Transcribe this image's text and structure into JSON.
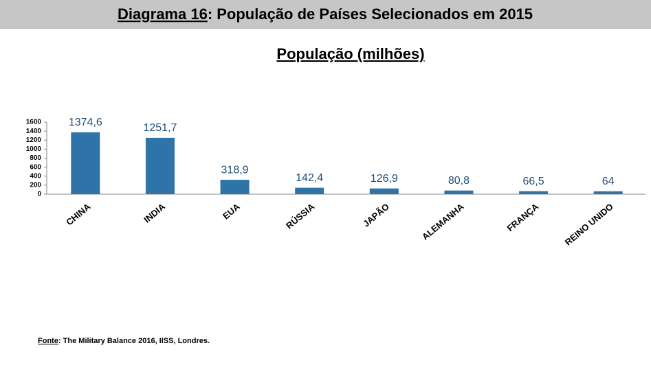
{
  "header": {
    "label": "Diagrama 16",
    "text": ": População de Países Selecionados em 2015"
  },
  "chart_data": {
    "type": "bar",
    "title": "População (milhões)",
    "categories": [
      "CHINA",
      "INDIA",
      "EUA",
      "RÚSSIA",
      "JAPÃO",
      "ALEMANHA",
      "FRANÇA",
      "REINO UNIDO"
    ],
    "values": [
      1374.6,
      1251.7,
      318.9,
      142.4,
      126.9,
      80.8,
      66.5,
      64
    ],
    "value_labels": [
      "1374,6",
      "1251,7",
      "318,9",
      "142,4",
      "126,9",
      "80,8",
      "66,5",
      "64"
    ],
    "color": "#2e74a8",
    "ylim": [
      0,
      1600
    ],
    "yticks": [
      0,
      200,
      400,
      600,
      800,
      1000,
      1200,
      1400,
      1600
    ],
    "grid": false
  },
  "source": {
    "label": "Fonte",
    "text": ": The Military Balance 2016, IISS, Londres."
  }
}
